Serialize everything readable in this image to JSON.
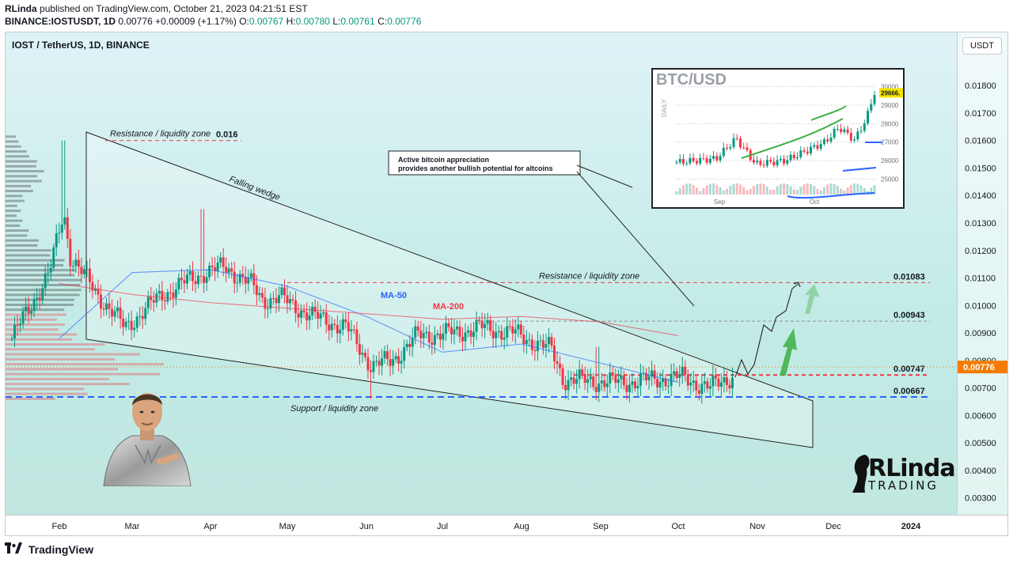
{
  "publication": {
    "author": "RLinda",
    "text": "published on TradingView.com, October 21, 2023 04:21:51 EST"
  },
  "ohlc": {
    "symbol": "BINANCE:IOSTUSDT, 1D",
    "last": "0.00776",
    "change": "+0.00009 (+1.17%)",
    "o": "0.00767",
    "h": "0.00780",
    "l": "0.00761",
    "c": "0.00776"
  },
  "colors": {
    "up": "#089981",
    "down": "#f23645",
    "ma50": "#2962ff",
    "ma200": "#f23645",
    "support": "#2962ff",
    "resistance": "#f23645",
    "last_price": "#f57c00",
    "arrow": "#3cb043"
  },
  "icons": {
    "tradingview_logo": "tradingview-logo-icon"
  },
  "brand": {
    "name": "RLinda",
    "sub": "TRADING"
  },
  "footer": {
    "logo_text": "TradingView"
  },
  "chart_data": [
    {
      "type": "candlestick",
      "title": "IOST / TetherUS, 1D, BINANCE",
      "unit_label": "USDT",
      "ylim": [
        0.0025,
        0.0193
      ],
      "y_ticks": [
        "0.01800",
        "0.01700",
        "0.01600",
        "0.01500",
        "0.01400",
        "0.01300",
        "0.01200",
        "0.01100",
        "0.01000",
        "0.00900",
        "0.00800",
        "0.00700",
        "0.00600",
        "0.00500",
        "0.00400",
        "0.00300"
      ],
      "x_ticks": [
        "Feb",
        "Mar",
        "Apr",
        "May",
        "Jun",
        "Jul",
        "Aug",
        "Sep",
        "Oct",
        "Nov",
        "Dec",
        "2024"
      ],
      "last_price": "0.00776",
      "levels": [
        {
          "value": 0.016,
          "label": "Resistance / liquidity zone",
          "value_label": "0.016",
          "style": "red-dashed"
        },
        {
          "value": 0.01083,
          "label": "Resistance / liquidity zone",
          "value_label": "0.01083",
          "style": "red-dashed"
        },
        {
          "value": 0.00943,
          "label": "",
          "value_label": "0.00943",
          "style": "gray-dashed"
        },
        {
          "value": 0.00747,
          "label": "",
          "value_label": "0.00747",
          "style": "red-dashed"
        },
        {
          "value": 0.00667,
          "label": "Support / liquidity zone",
          "value_label": "0.00667",
          "style": "blue-dashed"
        }
      ],
      "series": [
        {
          "name": "MA-50",
          "points": [
            [
              "Feb",
              0.0088
            ],
            [
              "Mar",
              0.0112
            ],
            [
              "Apr",
              0.0113
            ],
            [
              "May",
              0.0107
            ],
            [
              "Jun",
              0.0096
            ],
            [
              "Jul",
              0.0083
            ],
            [
              "Aug",
              0.0086
            ],
            [
              "Sep",
              0.0079
            ],
            [
              "Oct",
              0.0072
            ]
          ]
        },
        {
          "name": "MA-200",
          "points": [
            [
              "Feb",
              0.0108
            ],
            [
              "Mar",
              0.0104
            ],
            [
              "Apr",
              0.0101
            ],
            [
              "May",
              0.0099
            ],
            [
              "Jun",
              0.0097
            ],
            [
              "Jul",
              0.0095
            ],
            [
              "Aug",
              0.0096
            ],
            [
              "Sep",
              0.0094
            ],
            [
              "Oct",
              0.0089
            ]
          ]
        }
      ],
      "annotations": {
        "wedge": "Falling wedge",
        "note": "Active bitcoin appreciation provides another bullish potential for altcoins",
        "note_line1": "Active bitcoin appreciation",
        "note_line2": "provides another bullish potential for altcoins"
      }
    },
    {
      "type": "candlestick",
      "title": "BTC/USD",
      "timeframe": "DAILY",
      "ylim": [
        24500,
        30500
      ],
      "y_ticks": [
        "30000",
        "29000",
        "28000",
        "27000",
        "26000",
        "25000"
      ],
      "x_ticks": [
        "Sep",
        "Oct"
      ],
      "last_price": "29666."
    }
  ]
}
